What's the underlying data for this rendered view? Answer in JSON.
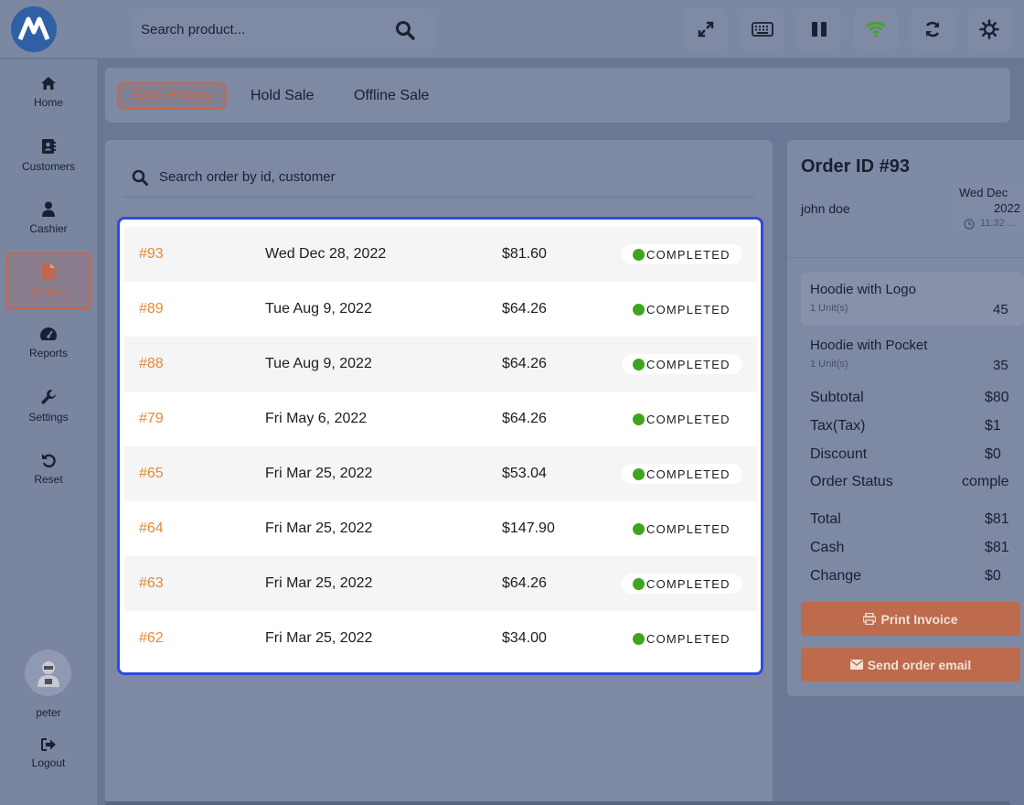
{
  "header": {
    "search_placeholder": "Search product...",
    "icons": [
      "expand-icon",
      "keyboard-icon",
      "pause-icon",
      "wifi-icon",
      "refresh-icon",
      "theme-icon"
    ],
    "wifi_color": "#3fa51e"
  },
  "sidebar": {
    "items": [
      {
        "label": "Home",
        "icon": "home-icon"
      },
      {
        "label": "Customers",
        "icon": "address-book-icon"
      },
      {
        "label": "Cashier",
        "icon": "user-icon"
      },
      {
        "label": "Orders",
        "icon": "file-icon",
        "active": true
      },
      {
        "label": "Reports",
        "icon": "dashboard-icon"
      },
      {
        "label": "Settings",
        "icon": "wrench-icon"
      },
      {
        "label": "Reset",
        "icon": "undo-icon"
      }
    ],
    "user_name": "peter",
    "logout_label": "Logout",
    "accent_color": "#c1694c"
  },
  "tabs": [
    {
      "label": "Sale History",
      "active": true
    },
    {
      "label": "Hold Sale"
    },
    {
      "label": "Offline Sale"
    }
  ],
  "orders": {
    "search_placeholder": "Search order by id, customer",
    "rows": [
      {
        "id": "#93",
        "date": "Wed Dec 28, 2022",
        "amount": "$81.60",
        "status": "COMPLETED"
      },
      {
        "id": "#89",
        "date": "Tue Aug 9, 2022",
        "amount": "$64.26",
        "status": "COMPLETED"
      },
      {
        "id": "#88",
        "date": "Tue Aug 9, 2022",
        "amount": "$64.26",
        "status": "COMPLETED"
      },
      {
        "id": "#79",
        "date": "Fri May 6, 2022",
        "amount": "$64.26",
        "status": "COMPLETED"
      },
      {
        "id": "#65",
        "date": "Fri Mar 25, 2022",
        "amount": "$53.04",
        "status": "COMPLETED"
      },
      {
        "id": "#64",
        "date": "Fri Mar 25, 2022",
        "amount": "$147.90",
        "status": "COMPLETED"
      },
      {
        "id": "#63",
        "date": "Fri Mar 25, 2022",
        "amount": "$64.26",
        "status": "COMPLETED"
      },
      {
        "id": "#62",
        "date": "Fri Mar 25, 2022",
        "amount": "$34.00",
        "status": "COMPLETED"
      }
    ],
    "status_color": "#3fa51e",
    "id_color": "#e08a3a"
  },
  "detail": {
    "title": "Order ID #93",
    "customer": "john doe",
    "date_line1": "Wed Dec",
    "date_line2": "2022",
    "time": "11:32 ...",
    "items": [
      {
        "name": "Hoodie with Logo",
        "qty": "1 Unit(s)",
        "price": "45"
      },
      {
        "name": "Hoodie with Pocket",
        "qty": "1 Unit(s)",
        "price": "35"
      }
    ],
    "summary": [
      {
        "label": "Subtotal",
        "value": "$80"
      },
      {
        "label": "Tax(Tax)",
        "value": "$1"
      },
      {
        "label": "Discount",
        "value": "$0"
      },
      {
        "label": "Order Status",
        "value": "comple"
      }
    ],
    "totals": [
      {
        "label": "Total",
        "value": "$81"
      },
      {
        "label": "Cash",
        "value": "$81"
      },
      {
        "label": "Change",
        "value": "$0"
      }
    ],
    "print_label": "Print Invoice",
    "email_label": "Send order email"
  }
}
